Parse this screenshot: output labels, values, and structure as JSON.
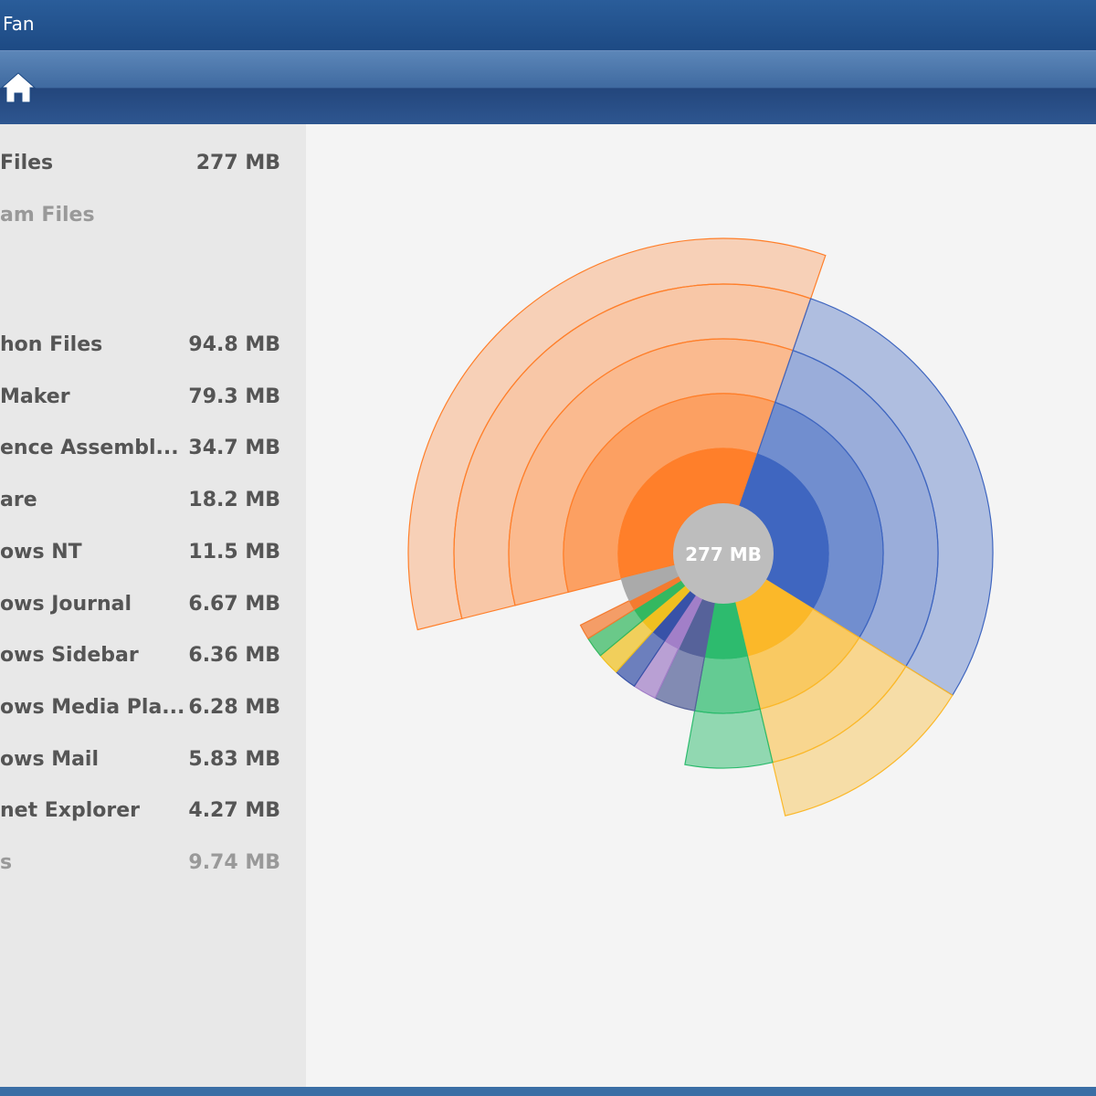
{
  "window": {
    "title": "Fan"
  },
  "list": {
    "root": {
      "name": "Files",
      "size": "277 MB"
    },
    "parent": "am Files",
    "items": [
      "hon Files",
      "Maker",
      "ence Assembl...",
      "are",
      "ows NT",
      "ows Journal",
      "ows Sidebar",
      "ows Media Pla...",
      "ows Mail",
      "net Explorer",
      "s"
    ],
    "values": [
      94.8,
      79.3,
      34.7,
      18.2,
      11.5,
      6.67,
      6.36,
      6.28,
      5.83,
      4.27,
      9.74
    ],
    "value_labels": [
      "94.8 MB",
      "79.3 MB",
      "34.7 MB",
      "18.2 MB",
      "11.5 MB",
      "6.67 MB",
      "6.36 MB",
      "6.28 MB",
      "5.83 MB",
      "4.27 MB",
      "9.74 MB"
    ],
    "colors": [
      "#ff7f2a",
      "#3f66c0",
      "#fbb829",
      "#2dbb6e",
      "#56629a",
      "#a27fc8",
      "#3852a8",
      "#f0c020",
      "#34b860",
      "#f47b30",
      "#aaaaaa"
    ]
  }
}
